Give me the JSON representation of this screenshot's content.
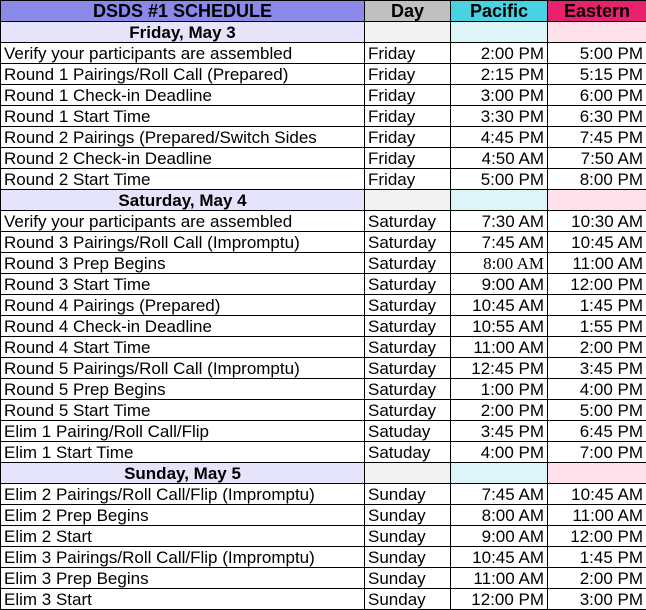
{
  "header": {
    "title": "DSDS #1 SCHEDULE",
    "day": "Day",
    "pacific": "Pacific",
    "eastern": "Eastern"
  },
  "colors": {
    "title": "#8a88e8",
    "day": "#c0c0c0",
    "pacific": "#48d2e2",
    "eastern": "#e8216c"
  },
  "sections": [
    {
      "label": "Friday, May 3",
      "rows": [
        {
          "event": "Verify your participants are assembled",
          "day": "Friday",
          "pacific": "2:00 PM",
          "eastern": "5:00 PM"
        },
        {
          "event": "Round 1 Pairings/Roll Call (Prepared)",
          "day": "Friday",
          "pacific": "2:15 PM",
          "eastern": "5:15 PM"
        },
        {
          "event": "Round 1 Check-in Deadline",
          "day": "Friday",
          "pacific": "3:00 PM",
          "eastern": "6:00 PM"
        },
        {
          "event": "Round 1 Start Time",
          "day": "Friday",
          "pacific": "3:30 PM",
          "eastern": "6:30 PM"
        },
        {
          "event": "Round 2 Pairings (Prepared/Switch Sides",
          "day": "Friday",
          "pacific": "4:45 PM",
          "eastern": "7:45 PM"
        },
        {
          "event": "Round 2 Check-in Deadline",
          "day": "Friday",
          "pacific": "4:50 AM",
          "eastern": "7:50 AM"
        },
        {
          "event": "Round 2 Start Time",
          "day": "Friday",
          "pacific": "5:00 PM",
          "eastern": "8:00 PM"
        }
      ]
    },
    {
      "label": "Saturday, May 4",
      "rows": [
        {
          "event": "Verify your participants are assembled",
          "day": "Saturday",
          "pacific": "7:30 AM",
          "eastern": "10:30 AM"
        },
        {
          "event": "Round 3 Pairings/Roll Call (Impromptu)",
          "day": "Saturday",
          "pacific": "7:45 AM",
          "eastern": "10:45 AM"
        },
        {
          "event": "Round 3 Prep Begins",
          "day": "Saturday",
          "pacific": "8:00 AM",
          "eastern": "11:00 AM",
          "serif": true
        },
        {
          "event": "Round 3 Start Time",
          "day": "Saturday",
          "pacific": "9:00 AM",
          "eastern": "12:00 PM"
        },
        {
          "event": "Round 4 Pairings (Prepared)",
          "day": "Saturday",
          "pacific": "10:45 AM",
          "eastern": "1:45 PM"
        },
        {
          "event": "Round 4  Check-in Deadline",
          "day": "Saturday",
          "pacific": "10:55 AM",
          "eastern": "1:55 PM"
        },
        {
          "event": "Round 4 Start Time",
          "day": "Saturday",
          "pacific": "11:00 AM",
          "eastern": "2:00 PM"
        },
        {
          "event": "Round 5 Pairings/Roll Call (Impromptu)",
          "day": "Saturday",
          "pacific": "12:45 PM",
          "eastern": "3:45 PM"
        },
        {
          "event": "Round 5 Prep Begins",
          "day": "Saturday",
          "pacific": "1:00 PM",
          "eastern": "4:00 PM"
        },
        {
          "event": "Round 5 Start Time",
          "day": "Saturday",
          "pacific": "2:00 PM",
          "eastern": "5:00 PM"
        },
        {
          "event": "Elim 1 Pairing/Roll Call/Flip",
          "day": "Satuday",
          "pacific": "3:45 PM",
          "eastern": "6:45 PM"
        },
        {
          "event": "Elim 1 Start Time",
          "day": "Satuday",
          "pacific": "4:00 PM",
          "eastern": "7:00 PM"
        }
      ]
    },
    {
      "label": "Sunday, May 5",
      "rows": [
        {
          "event": "Elim 2 Pairings/Roll Call/Flip (Impromptu)",
          "day": "Sunday",
          "pacific": "7:45 AM",
          "eastern": "10:45 AM"
        },
        {
          "event": "Elim 2 Prep Begins",
          "day": "Sunday",
          "pacific": "8:00 AM",
          "eastern": "11:00 AM"
        },
        {
          "event": "Elim 2 Start",
          "day": "Sunday",
          "pacific": "9:00 AM",
          "eastern": "12:00 PM"
        },
        {
          "event": "Elim 3 Pairings/Roll Call/Flip (Impromptu)",
          "day": "Sunday",
          "pacific": "10:45 AM",
          "eastern": "1:45 PM"
        },
        {
          "event": "Elim 3 Prep Begins",
          "day": "Sunday",
          "pacific": "11:00 AM",
          "eastern": "2:00 PM"
        },
        {
          "event": "Elim 3 Start",
          "day": "Sunday",
          "pacific": "12:00 PM",
          "eastern": "3:00 PM"
        }
      ]
    }
  ]
}
